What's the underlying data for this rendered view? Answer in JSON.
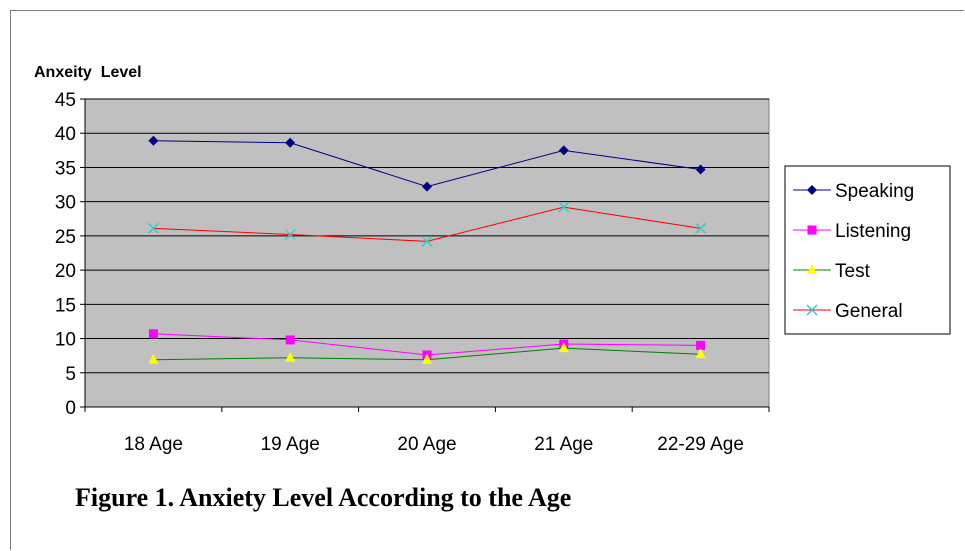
{
  "figure": {
    "caption": "Figure 1. Anxiety Level According to the Age"
  },
  "chart_data": {
    "type": "line",
    "ylabel": "Anxeity  Level",
    "xlabel": "",
    "categories": [
      "18 Age",
      "19 Age",
      "20 Age",
      "21 Age",
      "22-29 Age"
    ],
    "ylim": [
      0,
      45
    ],
    "yticks": [
      0,
      5,
      10,
      15,
      20,
      25,
      30,
      35,
      40,
      45
    ],
    "grid": true,
    "legend_position": "right",
    "plot_background": "#c0c0c0",
    "series": [
      {
        "name": "Speaking",
        "values": [
          38.9,
          38.6,
          32.2,
          37.5,
          34.7
        ],
        "line_color": "#000080",
        "marker": "diamond",
        "marker_color": "#000080"
      },
      {
        "name": "Listening",
        "values": [
          10.7,
          9.8,
          7.6,
          9.2,
          9.0
        ],
        "line_color": "#ff00ff",
        "marker": "square",
        "marker_color": "#ff00ff"
      },
      {
        "name": "Test",
        "values": [
          6.9,
          7.2,
          6.9,
          8.6,
          7.7
        ],
        "line_color": "#008000",
        "marker": "triangle",
        "marker_color": "#ffff00"
      },
      {
        "name": "General",
        "values": [
          26.1,
          25.2,
          24.2,
          29.2,
          26.1
        ],
        "line_color": "#ff0000",
        "marker": "x",
        "marker_color": "#33cccc"
      }
    ]
  }
}
